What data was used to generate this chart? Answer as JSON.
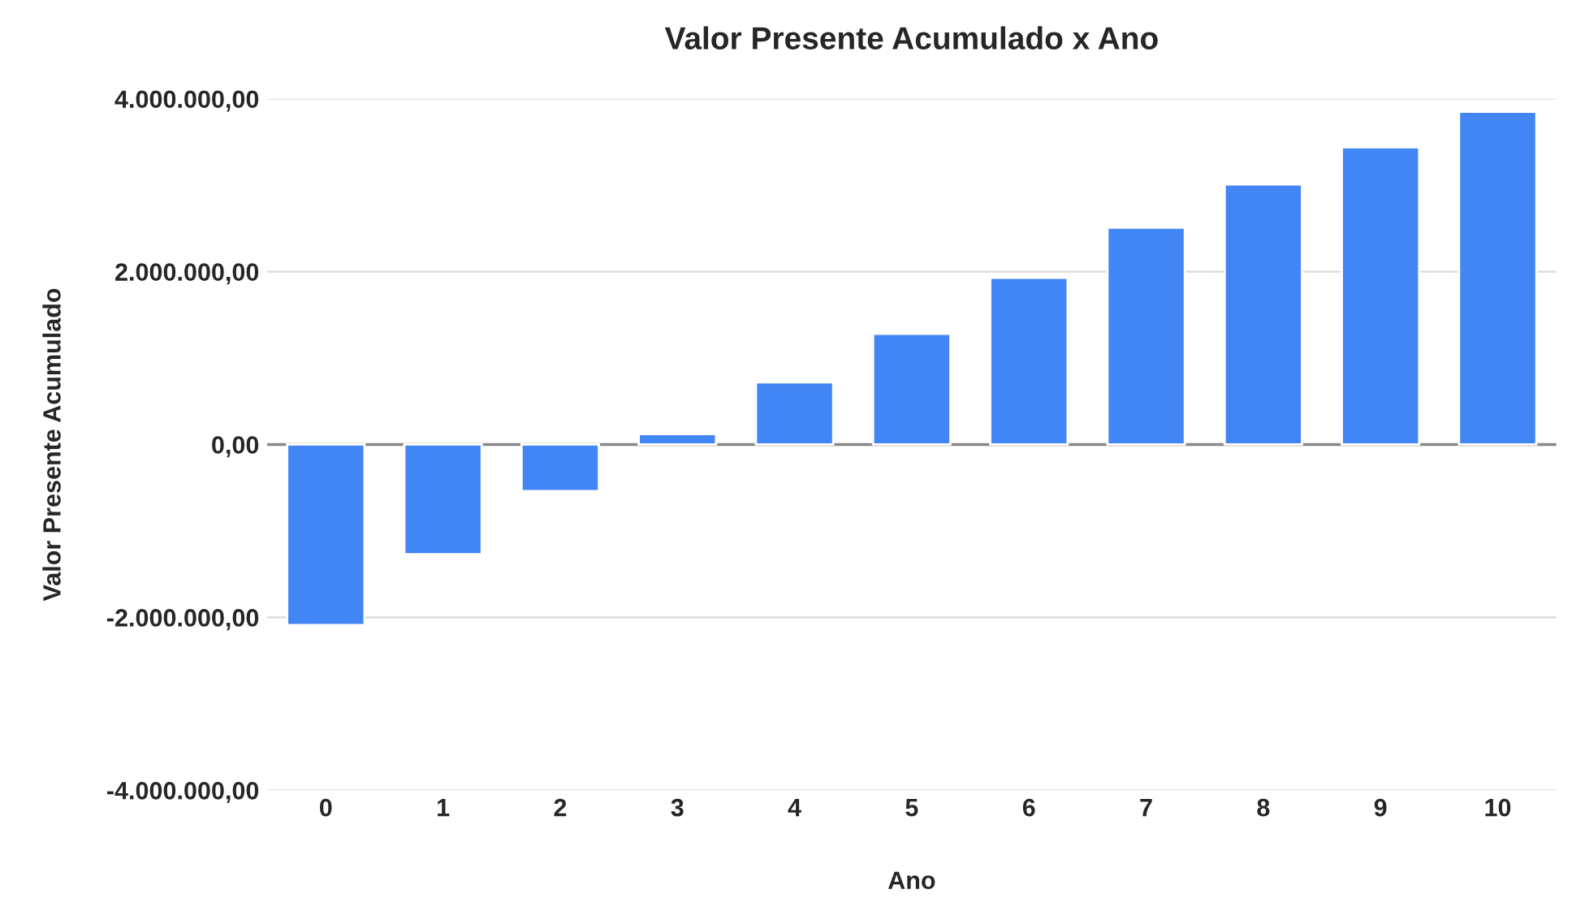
{
  "chart_data": {
    "type": "bar",
    "title": "Valor Presente Acumulado x Ano",
    "xlabel": "Ano",
    "ylabel": "Valor Presente Acumulado",
    "categories": [
      "0",
      "1",
      "2",
      "3",
      "4",
      "5",
      "6",
      "7",
      "8",
      "9",
      "10"
    ],
    "series": [
      {
        "color": "#4285f4",
        "values": [
          -2090000,
          -1270000,
          -540000,
          120000,
          720000,
          1280000,
          1930000,
          2510000,
          3010000,
          3440000,
          3850000
        ]
      }
    ],
    "ylim": [
      -4000000,
      4000000
    ],
    "yticks": [
      {
        "value": -4000000,
        "label": "-4.000.000,00"
      },
      {
        "value": -2000000,
        "label": "-2.000.000,00"
      },
      {
        "value": 0,
        "label": "0,00"
      },
      {
        "value": 2000000,
        "label": "2.000.000,00"
      },
      {
        "value": 4000000,
        "label": "4.000.000,00"
      }
    ],
    "grid": "y",
    "legend": false
  }
}
